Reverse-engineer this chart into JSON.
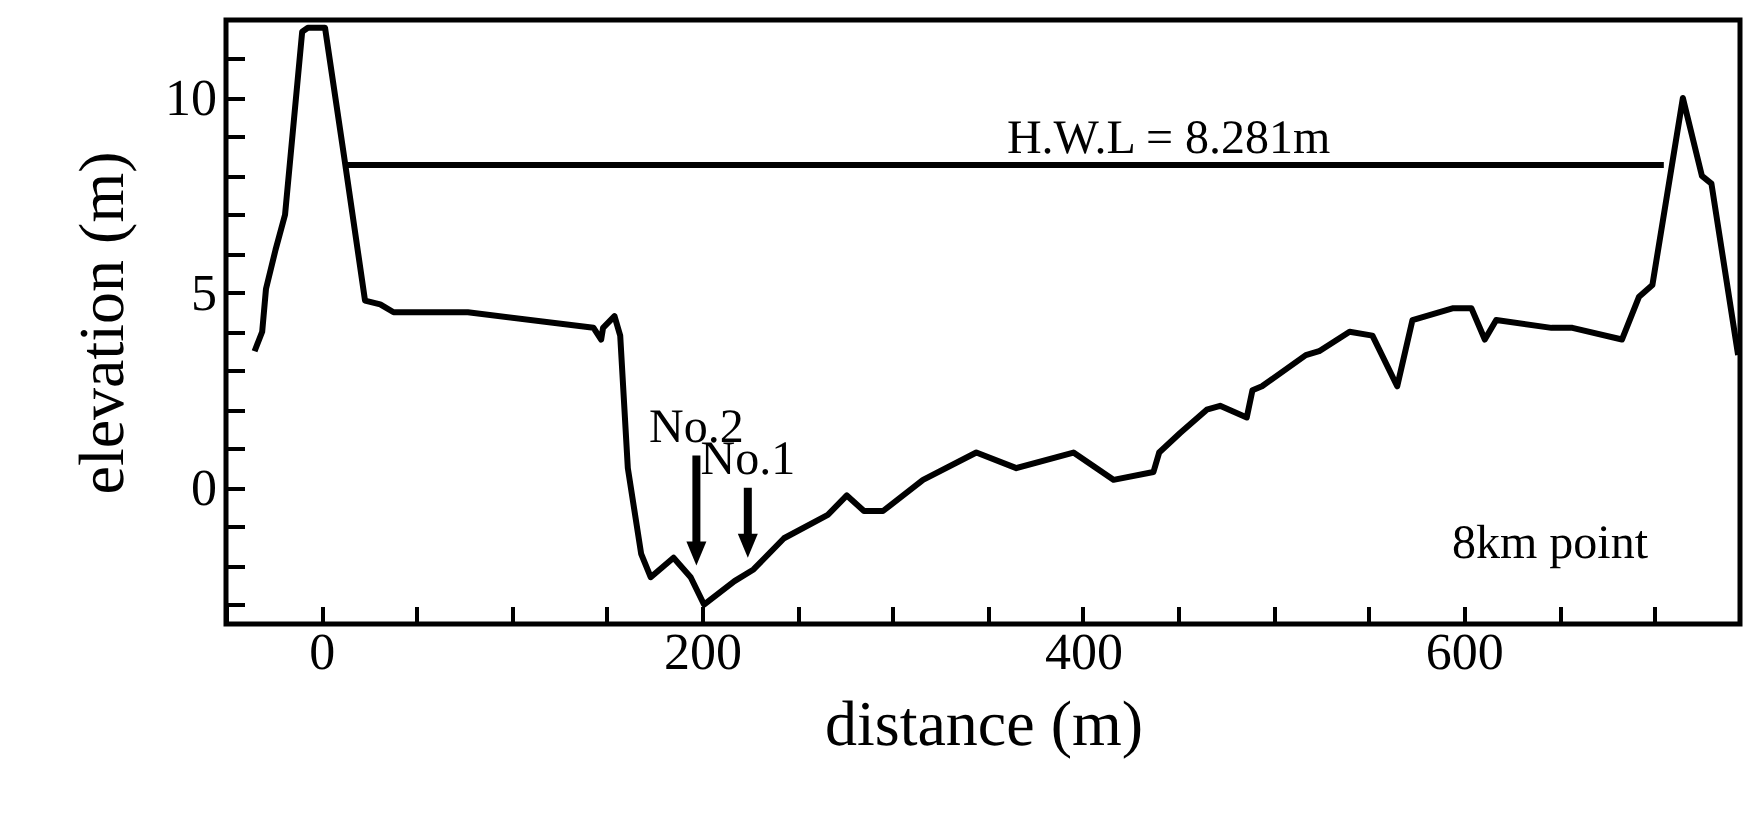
{
  "chart_data": {
    "type": "line",
    "xlabel": "distance (m)",
    "ylabel": "elevation (m)",
    "xlim": [
      -50,
      745
    ],
    "ylim": [
      -3.5,
      12
    ],
    "xticks": [
      {
        "value": -50,
        "label": null
      },
      0,
      {
        "value": 50,
        "label": null
      },
      {
        "value": 100,
        "label": null
      },
      {
        "value": 150,
        "label": null
      },
      200,
      {
        "value": 250,
        "label": null
      },
      {
        "value": 300,
        "label": null
      },
      {
        "value": 350,
        "label": null
      },
      400,
      {
        "value": 450,
        "label": null
      },
      {
        "value": 500,
        "label": null
      },
      {
        "value": 550,
        "label": null
      },
      600,
      {
        "value": 650,
        "label": null
      },
      {
        "value": 700,
        "label": null
      }
    ],
    "yticks": [
      {
        "value": -3,
        "label": null
      },
      {
        "value": -2,
        "label": null
      },
      {
        "value": -1,
        "label": null
      },
      0,
      {
        "value": 1,
        "label": null
      },
      {
        "value": 2,
        "label": null
      },
      {
        "value": 3,
        "label": null
      },
      {
        "value": 4,
        "label": null
      },
      5,
      {
        "value": 6,
        "label": null
      },
      {
        "value": 7,
        "label": null
      },
      {
        "value": 8,
        "label": null
      },
      {
        "value": 9,
        "label": null
      },
      10,
      {
        "value": 11,
        "label": null
      }
    ],
    "series": [
      {
        "color": "#000000",
        "x": [
          -35,
          -31,
          -29,
          -24,
          -19,
          -10,
          -7,
          2,
          12,
          23,
          31,
          38,
          77,
          143,
          147,
          148,
          154,
          157,
          161,
          168,
          173,
          185,
          194,
          201,
          217,
          227,
          243,
          266,
          276,
          285,
          295,
          316,
          344,
          365,
          395,
          416,
          437,
          440,
          451,
          465,
          472,
          486,
          489,
          494,
          517,
          524,
          540,
          552,
          565,
          573,
          594,
          604,
          611,
          617,
          646,
          657,
          683,
          692,
          699,
          715,
          725,
          730,
          744
        ],
        "values": [
          3.5,
          4.0,
          5.1,
          6.1,
          7.0,
          11.7,
          11.8,
          11.8,
          8.5,
          4.8,
          4.7,
          4.5,
          4.5,
          4.1,
          3.8,
          4.1,
          4.4,
          3.9,
          0.5,
          -1.7,
          -2.3,
          -1.8,
          -2.3,
          -3.0,
          -2.4,
          -2.1,
          -1.3,
          -0.7,
          -0.2,
          -0.6,
          -0.6,
          0.2,
          0.9,
          0.5,
          0.9,
          0.2,
          0.4,
          0.9,
          1.4,
          2.0,
          2.1,
          1.8,
          2.5,
          2.6,
          3.4,
          3.5,
          4.0,
          3.9,
          2.6,
          4.3,
          4.6,
          4.6,
          3.8,
          4.3,
          4.1,
          4.1,
          3.8,
          4.9,
          5.2,
          10.0,
          8.0,
          7.8,
          3.4
        ]
      },
      {
        "color": "#000000",
        "x": [
          13,
          705
        ],
        "values": [
          8.281,
          8.281
        ]
      }
    ],
    "annotations": [
      {
        "text": "No.2",
        "x": 197,
        "y": -2.0
      },
      {
        "text": "No.1",
        "x": 224,
        "y": -1.8
      },
      {
        "text": "H.W.L  =  8.281m",
        "x": 445,
        "y": 8.281
      },
      "8km  point"
    ]
  }
}
